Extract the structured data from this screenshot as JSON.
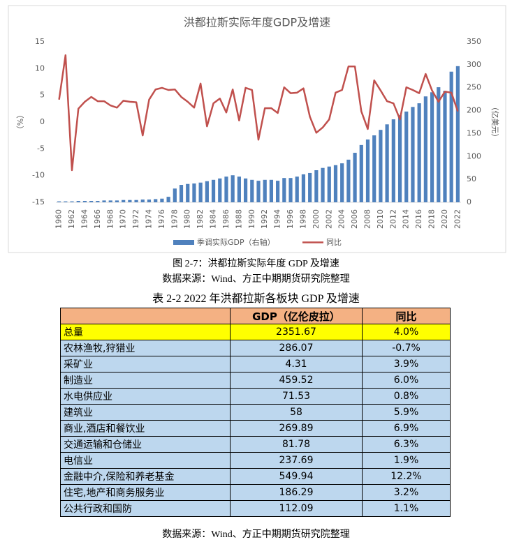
{
  "chart_data": {
    "type": "bar-line",
    "title": "洪都拉斯实际年度GDP及增速",
    "y_label": "（%）",
    "y2_label": "（亿美元）",
    "categories": [
      "1960",
      null,
      "1962",
      null,
      "1964",
      null,
      "1966",
      null,
      "1968",
      null,
      "1970",
      null,
      "1972",
      null,
      "1974",
      null,
      "1976",
      null,
      "1978",
      null,
      "1980",
      null,
      "1982",
      null,
      "1984",
      null,
      "1986",
      null,
      "1988",
      null,
      "1990",
      null,
      "1992",
      null,
      "1994",
      null,
      "1996",
      null,
      "1998",
      null,
      "2000",
      null,
      "2002",
      null,
      "2004",
      null,
      "2006",
      null,
      "2008",
      null,
      "2010",
      null,
      "2012",
      null,
      "2014",
      null,
      "2016",
      null,
      "2018",
      null,
      "2020",
      null,
      "2022"
    ],
    "ylim": [
      -15,
      15
    ],
    "yticks": [
      -15,
      -10,
      -5,
      0,
      5,
      10,
      15
    ],
    "y2lim": [
      0,
      350
    ],
    "y2ticks": [
      0,
      50,
      100,
      150,
      200,
      250,
      300,
      350
    ],
    "series": [
      {
        "name": "季调实际GDP（右轴）",
        "type": "bar",
        "axis": "y2",
        "color": "#4f81bd",
        "values": [
          2,
          2,
          2,
          3,
          3,
          3,
          3,
          4,
          4,
          4,
          5,
          5,
          5,
          6,
          6,
          7,
          8,
          12,
          30,
          38,
          40,
          41,
          43,
          46,
          49,
          52,
          56,
          59,
          56,
          52,
          49,
          47,
          49,
          49,
          47,
          53,
          53,
          56,
          61,
          64,
          70,
          75,
          78,
          81,
          85,
          93,
          108,
          125,
          137,
          146,
          158,
          170,
          181,
          190,
          198,
          208,
          216,
          231,
          240,
          251,
          243,
          285,
          297
        ]
      },
      {
        "name": "同比",
        "type": "line",
        "axis": "y",
        "color": "#c0504d",
        "values": [
          4.2,
          12.5,
          -9,
          2.5,
          3.8,
          4.7,
          3.9,
          3.9,
          3.1,
          2.7,
          4.0,
          3.8,
          3.7,
          -2.5,
          4.2,
          6.1,
          6.4,
          6.0,
          6.1,
          4.7,
          3.8,
          2.7,
          7.2,
          -0.8,
          3.5,
          4.4,
          1.8,
          6.1,
          0.3,
          6.4,
          6.0,
          -3.3,
          2.6,
          2.6,
          1.7,
          6.5,
          5.4,
          5.5,
          6.3,
          1.0,
          -2.0,
          -1.0,
          0.5,
          5.5,
          6.0,
          10.4,
          10.4,
          2.0,
          -1.3,
          7.8,
          5.9,
          3.9,
          3.5,
          0.5,
          6.5,
          6.0,
          5.4,
          9.0,
          5.9,
          3.8,
          5.7,
          5.5,
          2.0
        ]
      }
    ]
  },
  "figure_caption": "图 2-7：洪都拉斯实际年度 GDP 及增速",
  "figure_source": "数据来源：Wind、方正中期期货研究院整理",
  "table_caption": "表 2-2 2022 年洪都拉斯各板块 GDP 及增速",
  "table": {
    "header": [
      "GDP（亿伦皮拉）",
      "同比"
    ],
    "rows": [
      [
        "总量",
        "2351.67",
        "4.0%"
      ],
      [
        "农林渔牧,狩猎业",
        "286.07",
        "-0.7%"
      ],
      [
        "采矿业",
        "4.31",
        "3.9%"
      ],
      [
        "制造业",
        "459.52",
        "6.0%"
      ],
      [
        "水电供应业",
        "71.53",
        "0.8%"
      ],
      [
        "建筑业",
        "58",
        "5.9%"
      ],
      [
        "商业,酒店和餐饮业",
        "269.89",
        "6.9%"
      ],
      [
        "交通运输和仓储业",
        "81.78",
        "6.3%"
      ],
      [
        "电信业",
        "237.69",
        "1.9%"
      ],
      [
        "金融中介,保险和养老基金",
        "549.94",
        "12.2%"
      ],
      [
        "住宅,地产和商务服务业",
        "186.29",
        "3.2%"
      ],
      [
        "公共行政和国防",
        "112.09",
        "1.1%"
      ]
    ]
  },
  "table_source": "数据来源：Wind、方正中期期货研究院整理"
}
